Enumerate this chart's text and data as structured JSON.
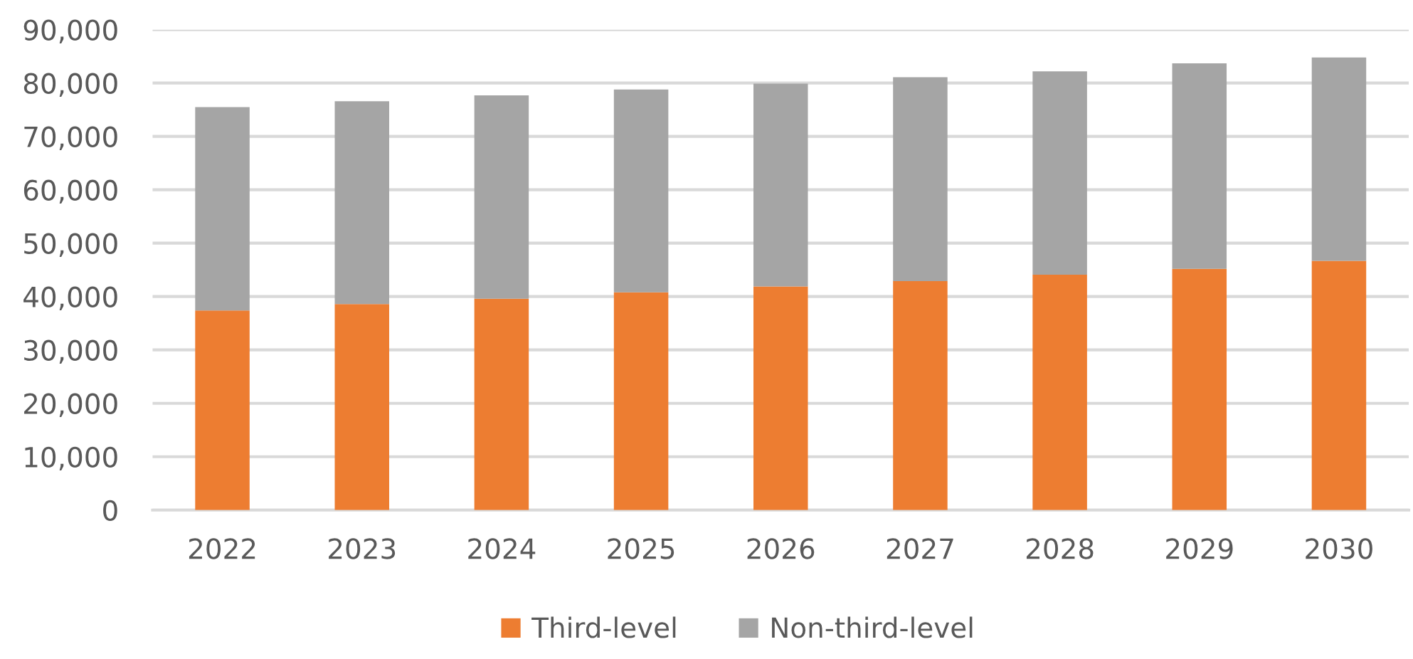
{
  "chart_data": {
    "type": "bar",
    "stacked": true,
    "categories": [
      "2022",
      "2023",
      "2024",
      "2025",
      "2026",
      "2027",
      "2028",
      "2029",
      "2030"
    ],
    "series": [
      {
        "name": "Third-level",
        "color": "#ed7d31",
        "values": [
          37400,
          38600,
          39600,
          40800,
          41900,
          42900,
          44100,
          45200,
          46700
        ]
      },
      {
        "name": "Non-third-level",
        "color": "#a5a5a5",
        "values": [
          38100,
          38000,
          38100,
          38000,
          38000,
          38200,
          38100,
          38500,
          38100
        ]
      }
    ],
    "ylim": [
      0,
      90000
    ],
    "yticks": [
      {
        "value": 0,
        "label": "0"
      },
      {
        "value": 10000,
        "label": "10,000"
      },
      {
        "value": 20000,
        "label": "20,000"
      },
      {
        "value": 30000,
        "label": "30,000"
      },
      {
        "value": 40000,
        "label": "40,000"
      },
      {
        "value": 50000,
        "label": "50,000"
      },
      {
        "value": 60000,
        "label": "60,000"
      },
      {
        "value": 70000,
        "label": "70,000"
      },
      {
        "value": 80000,
        "label": "80,000"
      },
      {
        "value": 90000,
        "label": "90,000"
      }
    ],
    "grid": "y",
    "legend": "bottom"
  }
}
